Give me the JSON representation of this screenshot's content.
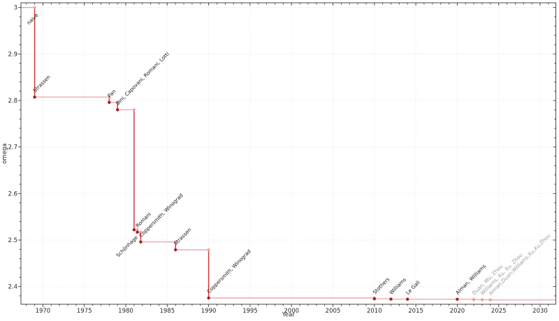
{
  "window": {
    "background": "#ffffff"
  },
  "chart_data": {
    "type": "line",
    "subtype": "step-post",
    "title": "",
    "xlabel": "Year",
    "ylabel": "omega",
    "xlim": [
      1967.35,
      2031.9
    ],
    "ylim": [
      2.362,
      3.01
    ],
    "grid": true,
    "legend": "none",
    "x_ticks": {
      "major": [
        1970,
        1975,
        1980,
        1985,
        1990,
        1995,
        2000,
        2005,
        2010,
        2015,
        2020,
        2025,
        2030
      ],
      "minor_step_years": 1
    },
    "y_ticks": {
      "major": [
        2.4,
        2.5,
        2.6,
        2.7,
        2.8,
        2.9,
        3.0
      ],
      "major_labels": [
        "2.4",
        "2.5",
        "2.6",
        "2.7",
        "2.8",
        "2.9",
        "3"
      ],
      "minor_step": 0.02
    },
    "colors": {
      "step_line": "rgba(214,39,40,0.40)",
      "step_drop": "rgba(208,32,36,0.85)",
      "marker": "#ad1b20",
      "marker_muted": "#eea2a3",
      "label": "#141414",
      "label_muted": "#9a9a9a"
    },
    "points": [
      {
        "label": "naive",
        "year": 1969,
        "omega": 3.0,
        "label_dir": "down-left",
        "muted": false,
        "initial": true
      },
      {
        "label": "Strassen",
        "year": 1969,
        "omega": 2.8074,
        "label_dir": "up-right",
        "muted": false
      },
      {
        "label": "Pan",
        "year": 1978,
        "omega": 2.796,
        "label_dir": "up-right",
        "muted": false
      },
      {
        "label": "Bini, Capovani, Romani, Lotti",
        "year": 1979,
        "omega": 2.78,
        "label_dir": "up-right",
        "muted": false
      },
      {
        "label": "Schönhage",
        "year": 1981,
        "omega": 2.522,
        "label_dir": "down-left",
        "muted": false
      },
      {
        "label": "Romani",
        "year": 1981.4,
        "omega": 2.517,
        "label_dir": "up-right",
        "muted": false
      },
      {
        "label": "Coppersmith, Winograd",
        "year": 1981.8,
        "omega": 2.496,
        "label_dir": "up-right",
        "muted": false
      },
      {
        "label": "Strassen",
        "year": 1986,
        "omega": 2.479,
        "label_dir": "up-right",
        "muted": false
      },
      {
        "label": "Coppersmith, Winograd",
        "year": 1990,
        "omega": 2.3755,
        "label_dir": "up-right",
        "muted": false
      },
      {
        "label": "Stothers",
        "year": 2010,
        "omega": 2.3737,
        "label_dir": "up-right",
        "muted": false
      },
      {
        "label": "Williams",
        "year": 2012,
        "omega": 2.3729,
        "label_dir": "up-right",
        "muted": false
      },
      {
        "label": "Le Gall",
        "year": 2014,
        "omega": 2.37286,
        "label_dir": "up-right",
        "muted": false
      },
      {
        "label": "Alman, Williams",
        "year": 2020,
        "omega": 2.37286,
        "label_dir": "up-right",
        "muted": false
      },
      {
        "label": "Duan, Wu, Zhou",
        "year": 2022,
        "omega": 2.37187,
        "label_dir": "up-right",
        "muted": true
      },
      {
        "label": "Williams, Xu, Xu, Zhou",
        "year": 2023,
        "omega": 2.37155,
        "label_dir": "up-right",
        "muted": true
      },
      {
        "label": "Alman,Duan,Williams,Xu,Xu,Zhou",
        "year": 2024,
        "omega": 2.37134,
        "label_dir": "up-right",
        "muted": true
      }
    ]
  }
}
